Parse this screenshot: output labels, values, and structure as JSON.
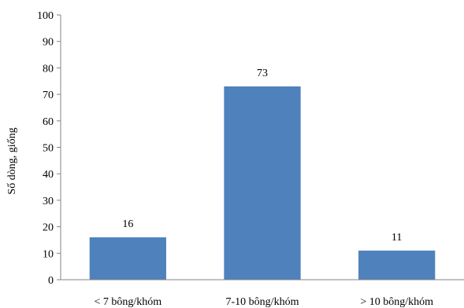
{
  "chart_data": {
    "type": "bar",
    "categories": [
      "< 7 bông/khóm",
      "7-10 bông/khóm",
      "> 10 bông/khóm"
    ],
    "values": [
      16,
      73,
      11
    ],
    "data_labels": [
      "16",
      "73",
      "11"
    ],
    "ylabel": "Số dòng, giống",
    "xlabel": "",
    "ylim": [
      0,
      100
    ],
    "yticks": [
      "0",
      "10",
      "20",
      "30",
      "40",
      "50",
      "60",
      "70",
      "80",
      "90",
      "100"
    ],
    "grid": false,
    "bar_color": "#4f81bd",
    "axis_color": "#868686"
  }
}
